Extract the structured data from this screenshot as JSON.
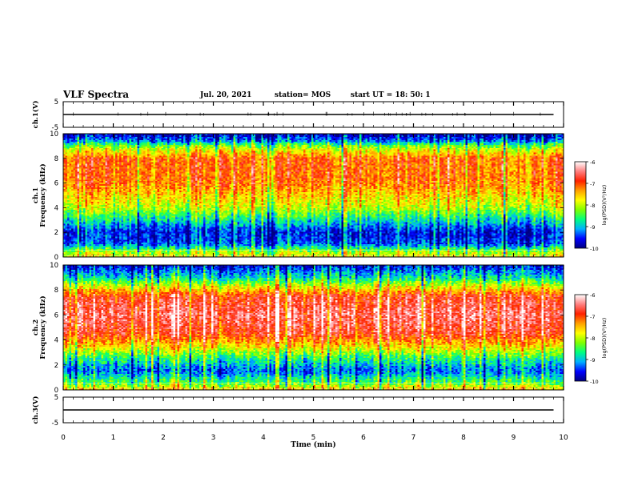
{
  "header": {
    "title": "VLF Spectra",
    "date": "Jul. 20, 2021",
    "station": "station= MOS",
    "start_ut": "start UT =  18: 50: 1"
  },
  "chart_data": [
    {
      "type": "line",
      "panel": "ch1-voltage",
      "ylabel": "ch.1(V)",
      "ylim": [
        -5,
        5
      ],
      "yticks": [
        "5",
        "-5"
      ],
      "series": [
        {
          "x": [
            0,
            9.8
          ],
          "y": [
            0,
            0
          ]
        }
      ]
    },
    {
      "type": "heatmap",
      "panel": "ch1-spectrogram",
      "ylabel": "ch.1\nFrequency (kHz)",
      "ylim": [
        0,
        10
      ],
      "yticks": [
        "0",
        "2",
        "4",
        "6",
        "8",
        "10"
      ],
      "colorbar": {
        "label": "log(PSD)(V²/Hz)",
        "ticks": [
          "-6",
          "-7",
          "-8",
          "-9",
          "-10"
        ],
        "range": [
          -10,
          -6
        ]
      },
      "band_profile": [
        {
          "f": 0.0,
          "level": -7.8
        },
        {
          "f": 0.4,
          "level": -8.2
        },
        {
          "f": 1.0,
          "level": -9.4
        },
        {
          "f": 2.0,
          "level": -9.6
        },
        {
          "f": 3.0,
          "level": -8.8
        },
        {
          "f": 4.0,
          "level": -8.0
        },
        {
          "f": 6.0,
          "level": -7.2
        },
        {
          "f": 8.0,
          "level": -7.1
        },
        {
          "f": 9.0,
          "level": -8.2
        },
        {
          "f": 9.5,
          "level": -9.3
        },
        {
          "f": 10.0,
          "level": -9.8
        }
      ]
    },
    {
      "type": "heatmap",
      "panel": "ch2-spectrogram",
      "ylabel": "ch.2\nFrequency (kHz)",
      "ylim": [
        0,
        10
      ],
      "yticks": [
        "0",
        "2",
        "4",
        "6",
        "8",
        "10"
      ],
      "colorbar": {
        "label": "log(PSD)(V²/Hz)",
        "ticks": [
          "-6",
          "-7",
          "-8",
          "-9",
          "-10"
        ],
        "range": [
          -10,
          -6
        ]
      },
      "band_profile": [
        {
          "f": 0.0,
          "level": -7.6
        },
        {
          "f": 0.5,
          "level": -8.4
        },
        {
          "f": 1.5,
          "level": -9.3
        },
        {
          "f": 2.5,
          "level": -8.6
        },
        {
          "f": 3.5,
          "level": -7.6
        },
        {
          "f": 4.5,
          "level": -6.8
        },
        {
          "f": 6.0,
          "level": -6.5
        },
        {
          "f": 7.5,
          "level": -6.8
        },
        {
          "f": 8.3,
          "level": -7.8
        },
        {
          "f": 9.0,
          "level": -8.8
        },
        {
          "f": 10.0,
          "level": -9.6
        }
      ]
    },
    {
      "type": "line",
      "panel": "ch3-voltage",
      "ylabel": "ch.3(V)",
      "ylim": [
        -5,
        5
      ],
      "yticks": [
        "5",
        "-5"
      ],
      "series": [
        {
          "x": [
            0,
            9.8
          ],
          "y": [
            0,
            0
          ]
        }
      ]
    }
  ],
  "xaxis": {
    "label": "Time (min)",
    "range": [
      0,
      10
    ],
    "ticks": [
      "0",
      "1",
      "2",
      "3",
      "4",
      "5",
      "6",
      "7",
      "8",
      "9",
      "10"
    ]
  },
  "colors": {
    "scale": [
      "#000080",
      "#0000ff",
      "#00b0ff",
      "#00ff80",
      "#80ff00",
      "#ffff00",
      "#ffa000",
      "#ff2000",
      "#ff8080",
      "#ffffff"
    ]
  }
}
